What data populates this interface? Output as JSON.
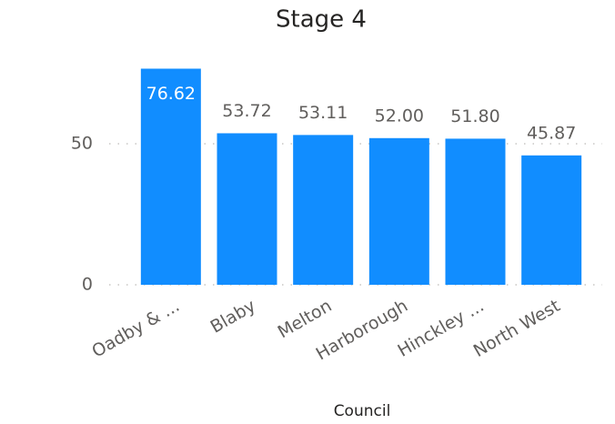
{
  "chart_data": {
    "type": "bar",
    "title": "Stage 4",
    "categories": [
      "Oadby & ...",
      "Blaby",
      "Melton",
      "Harborough",
      "Hinckley ...",
      "North West"
    ],
    "values": [
      76.62,
      53.72,
      53.11,
      52.0,
      51.8,
      45.87
    ],
    "value_labels": [
      "76.62",
      "53.72",
      "53.11",
      "52.00",
      "51.80",
      "45.87"
    ],
    "color": "#118dff",
    "x_label": "Council",
    "ylim": [
      0,
      80
    ],
    "yticks": [
      0,
      50
    ],
    "grid": true
  }
}
